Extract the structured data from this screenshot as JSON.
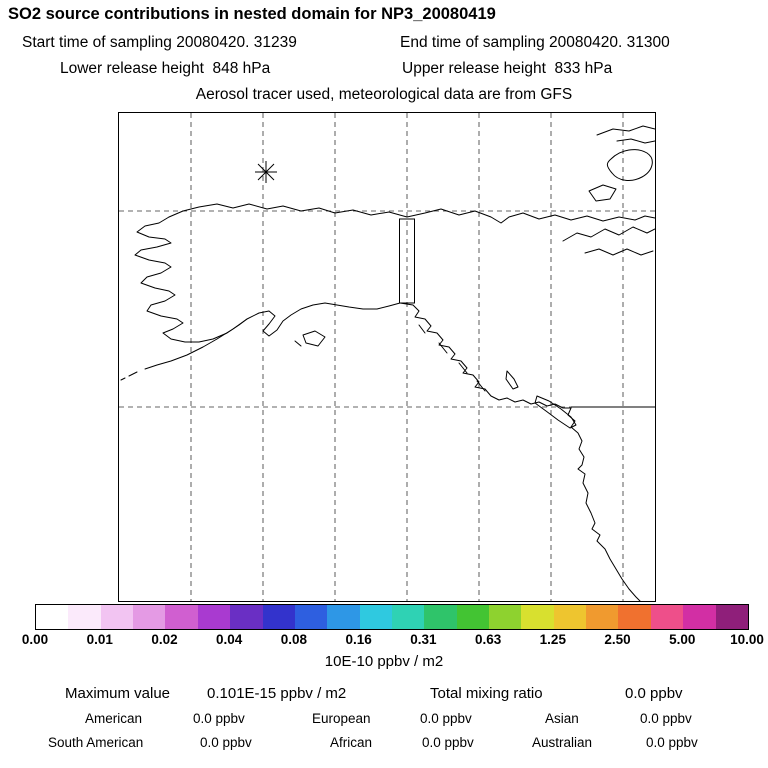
{
  "header": {
    "title": "SO2 source contributions in nested domain for NP3_20080419",
    "start_time": "Start time of sampling 20080420. 31239",
    "end_time": "End time of sampling 20080420. 31300",
    "lower_release": "Lower release height  848 hPa",
    "upper_release": "Upper release height  833 hPa",
    "tracer_line": "Aerosol tracer used, meteorological data are from GFS"
  },
  "chart_data": {
    "type": "heatmap",
    "title": "SO2 source contributions in nested domain for NP3_20080419",
    "map_region": "Alaska, northwestern Canada and US west coast with graticule",
    "marker": {
      "symbol": "asterisk"
    },
    "field_note": "no grid cells exceed the lowest contour level; only coastlines, gridlines and the source marker are visible",
    "colorbar": {
      "tick_labels": [
        "0.00",
        "0.01",
        "0.02",
        "0.04",
        "0.08",
        "0.16",
        "0.31",
        "0.63",
        "1.25",
        "2.50",
        "5.00",
        "10.00"
      ],
      "levels": [
        0,
        0.01,
        0.02,
        0.04,
        0.08,
        0.16,
        0.31,
        0.63,
        1.25,
        2.5,
        5.0,
        10.0
      ],
      "units": "10E-10 ppbv / m2",
      "colors": [
        "#ffffff",
        "#fbeafb",
        "#f2c4f2",
        "#e49ae4",
        "#d05fd0",
        "#a93ad0",
        "#6a2fc4",
        "#3333cc",
        "#2e5fe0",
        "#2e97e6",
        "#2fc9e0",
        "#2fd2b4",
        "#2fc46a",
        "#43c433",
        "#8ed22f",
        "#d8e02f",
        "#eec52f",
        "#f09a2f",
        "#f0712f",
        "#ee4f8a",
        "#d22fa4",
        "#8f1f7a"
      ]
    },
    "maximum_value": "0.101E-15 ppbv / m2",
    "total_mixing_ratio": "0.0 ppbv",
    "regional_mixing_ratios": {
      "American": "0.0 ppbv",
      "European": "0.0 ppbv",
      "Asian": "0.0 ppbv",
      "South American": "0.0 ppbv",
      "African": "0.0 ppbv",
      "Australian": "0.0 ppbv"
    }
  },
  "stats": {
    "maximum_label": "Maximum value",
    "maximum_value": "0.101E-15 ppbv / m2",
    "total_label": "Total mixing ratio",
    "total_value": "0.0 ppbv",
    "regions": [
      {
        "name": "American",
        "value": "0.0 ppbv"
      },
      {
        "name": "European",
        "value": "0.0 ppbv"
      },
      {
        "name": "Asian",
        "value": "0.0 ppbv"
      },
      {
        "name": "South American",
        "value": "0.0 ppbv"
      },
      {
        "name": "African",
        "value": "0.0 ppbv"
      },
      {
        "name": "Australian",
        "value": "0.0 ppbv"
      }
    ]
  }
}
